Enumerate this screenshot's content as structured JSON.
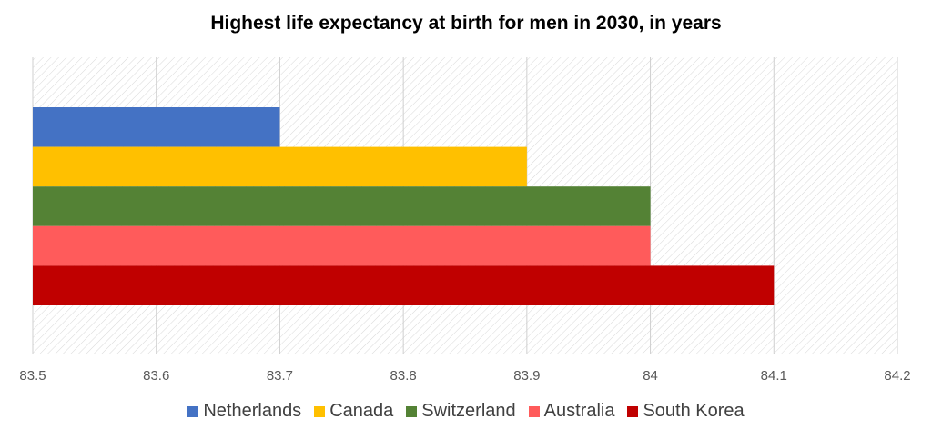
{
  "chart_data": {
    "type": "bar",
    "orientation": "horizontal",
    "title": "Highest life expectancy at birth for men in 2030, in years",
    "xlabel": "",
    "ylabel": "",
    "xlim": [
      83.5,
      84.2
    ],
    "x_ticks": [
      "83.5",
      "83.6",
      "83.7",
      "83.8",
      "83.9",
      "84",
      "84.1",
      "84.2"
    ],
    "grid": true,
    "legend_position": "bottom",
    "series": [
      {
        "name": "Netherlands",
        "value": 83.7,
        "color": "#4472C4"
      },
      {
        "name": "Canada",
        "value": 83.9,
        "color": "#FFC000"
      },
      {
        "name": "Switzerland",
        "value": 84.0,
        "color": "#548235"
      },
      {
        "name": "Australia",
        "value": 84.0,
        "color": "#FF5B5B"
      },
      {
        "name": "South Korea",
        "value": 84.1,
        "color": "#C00000"
      }
    ]
  }
}
